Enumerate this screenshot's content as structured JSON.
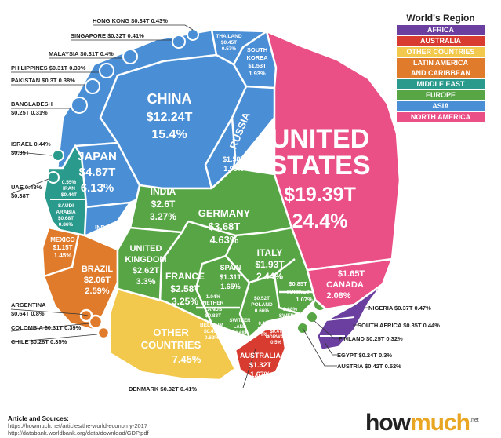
{
  "legend": {
    "title": "World's Region",
    "items": [
      {
        "label": "AFRICA",
        "color": "#6a3fa0"
      },
      {
        "label": "AUSTRALIA",
        "color": "#d83b2f"
      },
      {
        "label": "OTHER COUNTRIES",
        "color": "#f2c94c"
      },
      {
        "label": "LATIN AMERICA AND CARIBBEAN",
        "line1": "LATIN AMERICA",
        "line2": "AND CARIBBEAN",
        "color": "#e07b2c"
      },
      {
        "label": "MIDDLE EAST",
        "color": "#2a9a8c"
      },
      {
        "label": "EUROPE",
        "color": "#58a546"
      },
      {
        "label": "ASIA",
        "color": "#4a8fd6"
      },
      {
        "label": "NORTH AMERICA",
        "color": "#ea4f86"
      }
    ]
  },
  "cells": {
    "united_states": {
      "name1": "UNITED",
      "name2": "STATES",
      "value": "$19.39T",
      "share": "24.4%"
    },
    "china": {
      "name": "CHINA",
      "value": "$12.24T",
      "share": "15.4%"
    },
    "japan": {
      "name": "JAPAN",
      "value": "$4.87T",
      "share": "6.13%"
    },
    "india": {
      "name": "INDIA",
      "value": "$2.6T",
      "share": "3.27%"
    },
    "russia": {
      "name": "RUSSIA"
    },
    "russia_val": {
      "value": "$1.58T",
      "share": "1.99%"
    },
    "south_korea": {
      "name1": "SOUTH",
      "name2": "KOREA",
      "value": "$1.53T",
      "share": "1.93%"
    },
    "thailand": {
      "name": "THAILAND",
      "value": "$0.45T",
      "share": "0.57%"
    },
    "indonesia": {
      "name": "INDONESIA",
      "value": "$1.02T",
      "share": "1.28%"
    },
    "iran": {
      "share_top": "0.55%",
      "name": "IRAN",
      "value": "$0.44T"
    },
    "saudi": {
      "name1": "SAUDI",
      "name2": "ARABIA",
      "value": "$0.68T",
      "share": "0.86%"
    },
    "germany": {
      "name": "GERMANY",
      "value": "$3.68T",
      "share": "4.63%"
    },
    "uk": {
      "name1": "UNITED",
      "name2": "KINGDOM",
      "value": "$2.62T",
      "share": "3.3%"
    },
    "france": {
      "name": "FRANCE",
      "value": "$2.58T",
      "share": "3.25%"
    },
    "italy": {
      "name": "ITALY",
      "value": "$1.93T",
      "share": "2.44%"
    },
    "spain": {
      "name": "SPAIN",
      "value": "$1.31T",
      "share": "1.65%"
    },
    "netherlands": {
      "share_top": "1.04%",
      "name1": "NETHER",
      "name2": "LANDS",
      "value": "$0.83T"
    },
    "belgium": {
      "name": "BELGIUM",
      "value": "$0.49T",
      "share": "0.62%"
    },
    "switzerland": {
      "name1": "SWITZER",
      "name2": "LAND",
      "value": "$0.68T",
      "share": "0.85%"
    },
    "poland": {
      "value": "$0.52T",
      "name": "POLAND",
      "share": "0.66%"
    },
    "sweden": {
      "share_top": "0.68%",
      "name": "SWEDEN",
      "value": "$0.54T"
    },
    "turkey": {
      "value": "$0.85T",
      "name": "TURKEY",
      "share": "1.07%"
    },
    "ireland": {
      "share_top": "0.42%",
      "value": "$0.33T",
      "name": "IRL"
    },
    "norway": {
      "value": "$0.4T",
      "name": "NORWAY",
      "share": "0.5%"
    },
    "canada": {
      "value": "$1.65T",
      "name": "CANADA",
      "share": "2.08%"
    },
    "mexico": {
      "name": "MEXICO",
      "value": "$1.15T",
      "share": "1.45%"
    },
    "brazil": {
      "name": "BRAZIL",
      "value": "$2.06T",
      "share": "2.59%"
    },
    "other": {
      "name1": "OTHER",
      "name2": "COUNTRIES",
      "share": "7.45%"
    },
    "australia": {
      "name": "AUSTRALIA",
      "value": "$1.32T",
      "share": "1.67%"
    }
  },
  "callouts": [
    {
      "id": "hong_kong",
      "text": "HONG KONG $0.34T 0.43%"
    },
    {
      "id": "singapore",
      "text": "SINGAPORE $0.32T 0.41%"
    },
    {
      "id": "malaysia",
      "text": "MALAYSIA $0.31T 0.4%"
    },
    {
      "id": "philippines",
      "text": "PHILIPPINES $0.31T 0.39%"
    },
    {
      "id": "pakistan",
      "text": "PAKISTAN $0.3T 0.38%"
    },
    {
      "id": "bangladesh",
      "line1": "BANGLADESH",
      "line2": "$0.25T 0.31%"
    },
    {
      "id": "israel",
      "line1": "ISRAEL 0.44%",
      "line2": "$0.35T"
    },
    {
      "id": "uae",
      "line1": "UAE 0.48%",
      "line2": "$0.38T"
    },
    {
      "id": "argentina",
      "line1": "ARGENTINA",
      "line2": "$0.64T 0.8%"
    },
    {
      "id": "colombia",
      "text": "COLOMBIA $0.31T 0.39%"
    },
    {
      "id": "chile",
      "text": "CHILE $0.28T 0.35%"
    },
    {
      "id": "denmark",
      "text": "DENMARK $0.32T 0.41%"
    },
    {
      "id": "nigeria",
      "text": "NIGERIA $0.37T 0.47%"
    },
    {
      "id": "south_africa",
      "text": "SOUTH AFRICA $0.35T 0.44%"
    },
    {
      "id": "finland",
      "text": "FINLAND $0.25T  0.32%"
    },
    {
      "id": "egypt",
      "text": "EGYPT $0.24T  0.3%"
    },
    {
      "id": "austria",
      "text": "AUSTRIA $0.42T  0.52%"
    }
  ],
  "sources": {
    "title": "Article and Sources:",
    "line1": "https://howmuch.net/articles/the-world-economy-2017",
    "line2": "http://databank.worldbank.org/data/download/GDP.pdf"
  },
  "brand": {
    "part1": "how",
    "part2": "much",
    "suffix": ".net"
  }
}
